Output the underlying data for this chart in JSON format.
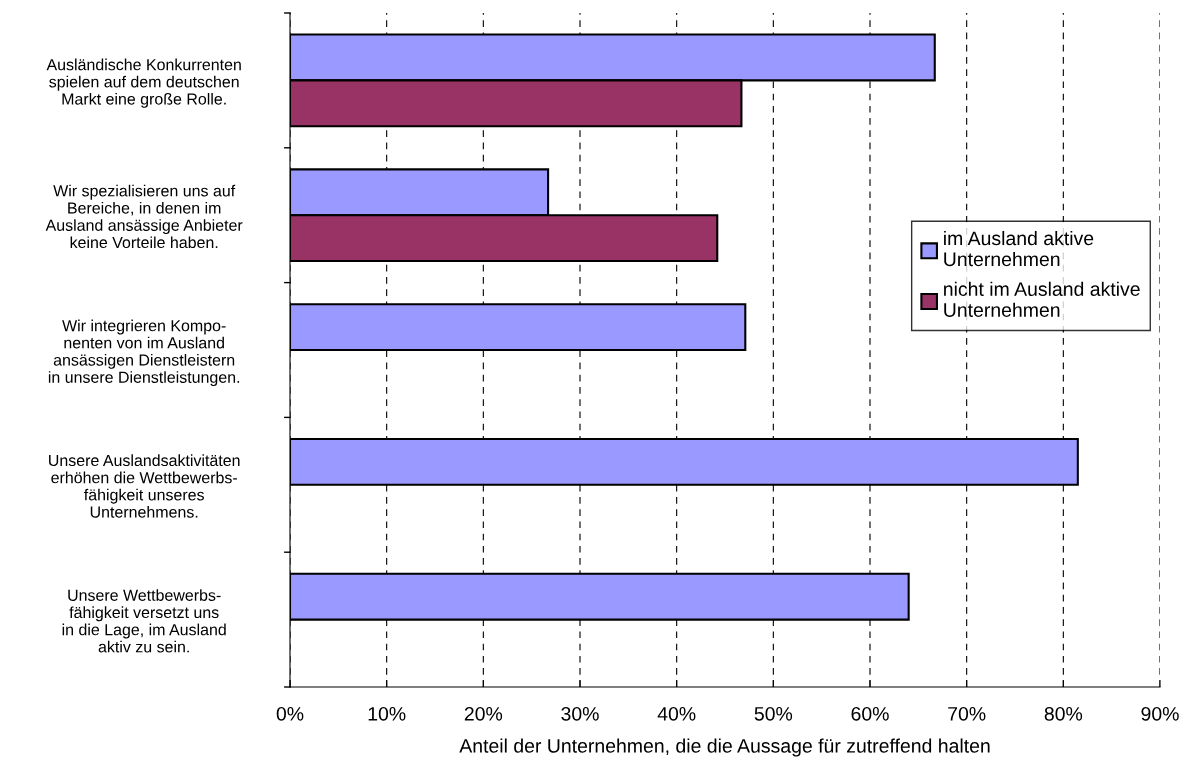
{
  "chart_data": {
    "type": "bar",
    "orientation": "horizontal",
    "categories": [
      "Ausländische Konkurrenten\nspielen auf dem deutschen\nMarkt eine große Rolle.",
      "Wir spezialisieren uns auf\nBereiche, in denen im\nAusland ansässige Anbieter\nkeine Vorteile haben.",
      "Wir integrieren Kompo-\nnenten von im Ausland\nansässigen Dienstleistern\nin unsere Dienstleistungen.",
      "Unsere Auslandsaktivitäten\nerhöhen die Wettbewerbs-\nfähigkeit unseres\nUnternehmens.",
      "Unsere Wettbewerbs-\nfähigkeit versetzt uns\nin die Lage, im Ausland\naktiv zu sein."
    ],
    "series": [
      {
        "name": "im Ausland aktive\nUnternehmen",
        "color": "#9999ff",
        "values": [
          66.7,
          26.7,
          47.1,
          81.5,
          64.0
        ]
      },
      {
        "name": "nicht im Ausland aktive\nUnternehmen",
        "color": "#993366",
        "values": [
          46.7,
          44.2,
          null,
          null,
          null
        ]
      }
    ],
    "xlim": [
      0,
      90
    ],
    "xticks": [
      {
        "value": 0,
        "label": "0%"
      },
      {
        "value": 10,
        "label": "10%"
      },
      {
        "value": 20,
        "label": "20%"
      },
      {
        "value": 30,
        "label": "30%"
      },
      {
        "value": 40,
        "label": "40%"
      },
      {
        "value": 50,
        "label": "50%"
      },
      {
        "value": 60,
        "label": "60%"
      },
      {
        "value": 70,
        "label": "70%"
      },
      {
        "value": 80,
        "label": "80%"
      },
      {
        "value": 90,
        "label": "90%"
      }
    ],
    "xlabel": "Anteil der Unternehmen, die die Aussage für zutreffend halten",
    "grid": "x",
    "legend": "right"
  }
}
